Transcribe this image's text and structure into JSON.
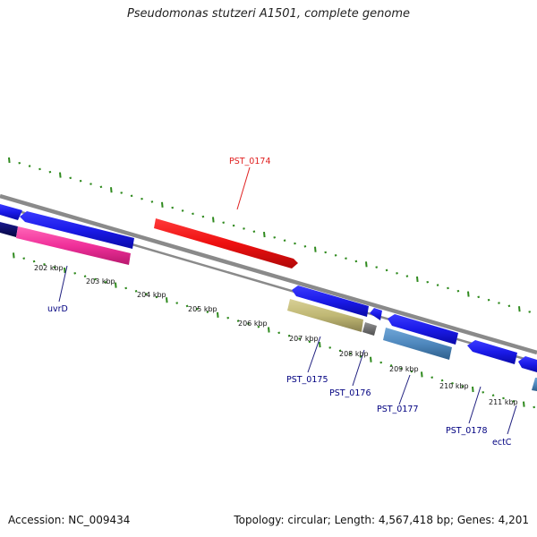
{
  "title": "Pseudomonas stutzeri A1501, complete genome",
  "footer": {
    "accession": "Accession: NC_009434",
    "summary": "Topology: circular; Length: 4,567,418 bp; Genes: 4,201"
  },
  "scale_labels": [
    "202 kbp",
    "203 kbp",
    "204 kbp",
    "205 kbp",
    "206 kbp",
    "207 kbp",
    "208 kbp",
    "209 kbp",
    "210 kbp",
    "211 kbp"
  ],
  "gene_labels": [
    "PST_0174",
    "uvrD",
    "PST_0175",
    "PST_0176",
    "PST_0177",
    "PST_0178",
    "ectC"
  ],
  "colors": {
    "backbone": "#808080",
    "scale_ticks": "#2f8a1e",
    "label_text": "#000080",
    "cds_blue": "#1010e8",
    "cds_red": "#ee1010",
    "cds_pink": "#f0309a",
    "cds_khaki": "#c0b874",
    "cds_steel": "#4f88bd",
    "cds_navy": "#0a0a70",
    "cds_gray": "#707070"
  }
}
